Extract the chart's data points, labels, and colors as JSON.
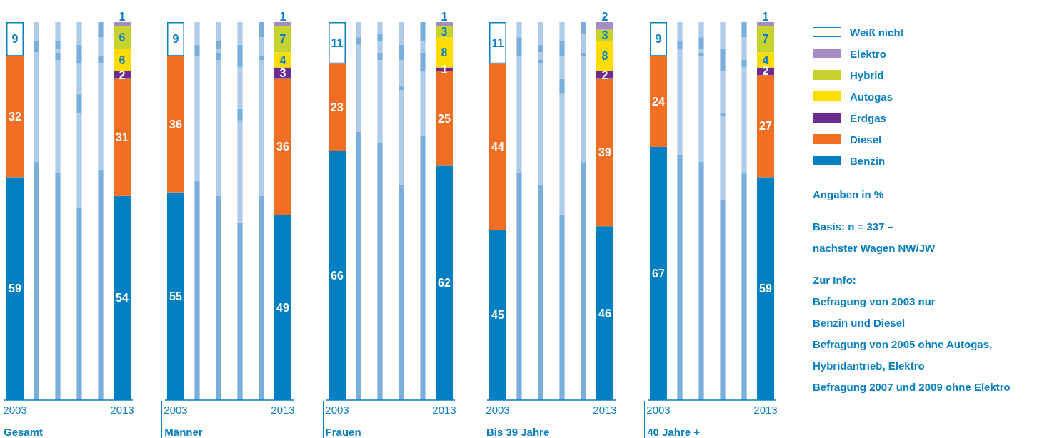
{
  "chart_data": [
    {
      "type": "bar",
      "stacked": true,
      "xlabel": "Gesamt",
      "categories": [
        "2003",
        null,
        null,
        null,
        null,
        "2013"
      ],
      "legend": "right",
      "annotations": [
        "Angaben in %",
        "Basis: n = 337 –\nnächster Wagen NW/JW",
        "Zur Info:\nBefragung von 2003 nur\nBenzin und Diesel\nBefragung von 2005 ohne Autogas,\nHybridantrieb, Elektro\nBefragung 2007 und 2009 ohne Elektro"
      ],
      "series": [
        {
          "name": "Benzin",
          "color": "#0080c3",
          "colors": [
            "#0080c3",
            "#7aafdb",
            "#7aafdb",
            "#7aafdb",
            "#7aafdb",
            "#0080c3"
          ],
          "values": [
            59,
            63,
            60,
            51,
            61,
            54
          ],
          "value_labels": [
            "59",
            null,
            null,
            null,
            null,
            "54"
          ]
        },
        {
          "name": "Diesel",
          "color": "#f26e22",
          "colors": [
            "#f26e22",
            "#aecbe9",
            "#aecbe9",
            "#aecbe9",
            "#aecbe9",
            "#f26e22"
          ],
          "values": [
            32,
            29,
            30,
            25,
            28,
            31
          ],
          "value_labels": [
            "32",
            null,
            null,
            null,
            null,
            "31"
          ]
        },
        {
          "name": "Erdgas",
          "color": "#6a2c91",
          "colors": [
            "#6a2c91",
            "#7aafdb",
            "#7aafdb",
            "#7aafdb",
            "#7aafdb",
            "#6a2c91"
          ],
          "values": [
            null,
            3,
            2,
            5,
            2,
            2
          ],
          "value_labels": [
            null,
            null,
            null,
            null,
            null,
            "2"
          ]
        },
        {
          "name": "Autogas",
          "color": "#ffdd00",
          "colors": [
            "#ffdd00",
            "#aecbe9",
            "#aecbe9",
            "#aecbe9",
            "#aecbe9",
            "#ffdd00"
          ],
          "values": [
            null,
            null,
            1,
            8,
            5,
            6
          ],
          "value_labels": [
            null,
            null,
            null,
            null,
            null,
            "6"
          ]
        },
        {
          "name": "Hybrid",
          "color": "#c8d22f",
          "colors": [
            "#c8d22f",
            "#7aafdb",
            "#7aafdb",
            "#7aafdb",
            "#7aafdb",
            "#c8d22f"
          ],
          "values": [
            null,
            null,
            2,
            5,
            4,
            6
          ],
          "value_labels": [
            null,
            null,
            null,
            null,
            null,
            "6"
          ]
        },
        {
          "name": "Elektro",
          "color": "#a58cc4",
          "colors": [
            "#a58cc4",
            "#aecbe9",
            "#aecbe9",
            "#aecbe9",
            "#aecbe9",
            "#a58cc4"
          ],
          "values": [
            null,
            null,
            null,
            null,
            null,
            1
          ],
          "value_labels": [
            null,
            null,
            null,
            null,
            null,
            "1"
          ]
        },
        {
          "name": "Weiß nicht",
          "color": "#ffffff",
          "colors": [
            "#ffffff",
            "#aecbe9",
            "#aecbe9",
            "#aecbe9",
            "#aecbe9",
            "#ffffff"
          ],
          "values": [
            9,
            5,
            5,
            6,
            null,
            null
          ],
          "value_labels": [
            "9",
            null,
            null,
            null,
            null,
            null
          ]
        }
      ]
    },
    {
      "type": "bar",
      "stacked": true,
      "xlabel": "Männer",
      "categories": [
        "2003",
        null,
        null,
        null,
        null,
        "2013"
      ],
      "series": [
        {
          "color": "#0080c3",
          "colors": [
            "#0080c3",
            "#7aafdb",
            "#7aafdb",
            "#7aafdb",
            "#7aafdb",
            "#0080c3"
          ],
          "values": [
            55,
            58,
            54,
            47,
            54,
            49
          ],
          "value_labels": [
            "55",
            null,
            null,
            null,
            null,
            "49"
          ]
        },
        {
          "color": "#f26e22",
          "colors": [
            "#f26e22",
            "#aecbe9",
            "#aecbe9",
            "#aecbe9",
            "#aecbe9",
            "#f26e22"
          ],
          "values": [
            36,
            33,
            36,
            27,
            36,
            36
          ],
          "value_labels": [
            "36",
            null,
            null,
            null,
            null,
            "36"
          ]
        },
        {
          "color": "#6a2c91",
          "colors": [
            "#6a2c91",
            "#7aafdb",
            "#7aafdb",
            "#7aafdb",
            "#7aafdb",
            "#6a2c91"
          ],
          "values": [
            null,
            3,
            2,
            3,
            1,
            3
          ],
          "value_labels": [
            null,
            null,
            null,
            null,
            null,
            "3"
          ]
        },
        {
          "color": "#ffdd00",
          "colors": [
            "#ffdd00",
            "#aecbe9",
            "#aecbe9",
            "#aecbe9",
            "#aecbe9",
            "#ffdd00"
          ],
          "values": [
            null,
            null,
            1,
            11,
            5,
            4
          ],
          "value_labels": [
            null,
            null,
            null,
            null,
            null,
            "4"
          ]
        },
        {
          "color": "#c8d22f",
          "colors": [
            "#c8d22f",
            "#7aafdb",
            "#7aafdb",
            "#7aafdb",
            "#7aafdb",
            "#c8d22f"
          ],
          "values": [
            null,
            null,
            2,
            6,
            4,
            7
          ],
          "value_labels": [
            null,
            null,
            null,
            null,
            null,
            "7"
          ]
        },
        {
          "color": "#a58cc4",
          "colors": [
            "#a58cc4",
            "#aecbe9",
            "#aecbe9",
            "#aecbe9",
            "#aecbe9",
            "#a58cc4"
          ],
          "values": [
            null,
            null,
            null,
            null,
            null,
            1
          ],
          "value_labels": [
            null,
            null,
            null,
            null,
            null,
            "1"
          ]
        },
        {
          "color": "#ffffff",
          "colors": [
            "#ffffff",
            "#aecbe9",
            "#aecbe9",
            "#aecbe9",
            "#aecbe9",
            "#ffffff"
          ],
          "values": [
            9,
            6,
            5,
            6,
            null,
            null
          ],
          "value_labels": [
            "9",
            null,
            null,
            null,
            null,
            null
          ]
        }
      ]
    },
    {
      "type": "bar",
      "stacked": true,
      "xlabel": "Frauen",
      "categories": [
        "2003",
        null,
        null,
        null,
        null,
        "2013"
      ],
      "series": [
        {
          "color": "#0080c3",
          "colors": [
            "#0080c3",
            "#7aafdb",
            "#7aafdb",
            "#7aafdb",
            "#7aafdb",
            "#0080c3"
          ],
          "values": [
            66,
            71,
            68,
            57,
            70,
            62
          ],
          "value_labels": [
            "66",
            null,
            null,
            null,
            null,
            "62"
          ]
        },
        {
          "color": "#f26e22",
          "colors": [
            "#f26e22",
            "#aecbe9",
            "#aecbe9",
            "#aecbe9",
            "#aecbe9",
            "#f26e22"
          ],
          "values": [
            23,
            23,
            22,
            25,
            17,
            25
          ],
          "value_labels": [
            "23",
            null,
            null,
            null,
            null,
            "25"
          ]
        },
        {
          "color": "#6a2c91",
          "colors": [
            "#6a2c91",
            "#7aafdb",
            "#7aafdb",
            "#7aafdb",
            "#7aafdb",
            "#6a2c91"
          ],
          "values": [
            null,
            2,
            2,
            1,
            5,
            1
          ],
          "value_labels": [
            null,
            null,
            null,
            null,
            null,
            "1"
          ]
        },
        {
          "color": "#ffdd00",
          "colors": [
            "#ffdd00",
            "#aecbe9",
            "#aecbe9",
            "#aecbe9",
            "#aecbe9",
            "#ffdd00"
          ],
          "values": [
            null,
            null,
            3,
            7,
            3,
            8
          ],
          "value_labels": [
            null,
            null,
            null,
            null,
            null,
            "8"
          ]
        },
        {
          "color": "#c8d22f",
          "colors": [
            "#c8d22f",
            "#7aafdb",
            "#7aafdb",
            "#7aafdb",
            "#7aafdb",
            "#c8d22f"
          ],
          "values": [
            null,
            null,
            2,
            4,
            5,
            3
          ],
          "value_labels": [
            null,
            null,
            null,
            null,
            null,
            "3"
          ]
        },
        {
          "color": "#a58cc4",
          "colors": [
            "#a58cc4",
            "#aecbe9",
            "#aecbe9",
            "#aecbe9",
            "#aecbe9",
            "#a58cc4"
          ],
          "values": [
            null,
            null,
            null,
            null,
            null,
            1
          ],
          "value_labels": [
            null,
            null,
            null,
            null,
            null,
            "1"
          ]
        },
        {
          "color": "#ffffff",
          "colors": [
            "#ffffff",
            "#aecbe9",
            "#aecbe9",
            "#aecbe9",
            "#aecbe9",
            "#ffffff"
          ],
          "values": [
            11,
            4,
            3,
            6,
            null,
            null
          ],
          "value_labels": [
            "11",
            null,
            null,
            null,
            null,
            null
          ]
        }
      ]
    },
    {
      "type": "bar",
      "stacked": true,
      "xlabel": "Bis 39 Jahre",
      "categories": [
        "2003",
        null,
        null,
        null,
        null,
        "2013"
      ],
      "series": [
        {
          "color": "#0080c3",
          "colors": [
            "#0080c3",
            "#7aafdb",
            "#7aafdb",
            "#7aafdb",
            "#7aafdb",
            "#0080c3"
          ],
          "values": [
            45,
            60,
            57,
            49,
            63,
            46
          ],
          "value_labels": [
            "45",
            null,
            null,
            null,
            null,
            "46"
          ]
        },
        {
          "color": "#f26e22",
          "colors": [
            "#f26e22",
            "#aecbe9",
            "#aecbe9",
            "#aecbe9",
            "#aecbe9",
            "#f26e22"
          ],
          "values": [
            44,
            31,
            32,
            32,
            28,
            39
          ],
          "value_labels": [
            "44",
            null,
            null,
            null,
            null,
            "39"
          ]
        },
        {
          "color": "#6a2c91",
          "colors": [
            "#6a2c91",
            "#7aafdb",
            "#7aafdb",
            "#7aafdb",
            "#7aafdb",
            "#6a2c91"
          ],
          "values": [
            null,
            5,
            1,
            4,
            1,
            2
          ],
          "value_labels": [
            null,
            null,
            null,
            null,
            null,
            "2"
          ]
        },
        {
          "color": "#ffdd00",
          "colors": [
            "#ffdd00",
            "#aecbe9",
            "#aecbe9",
            "#aecbe9",
            "#aecbe9",
            "#ffdd00"
          ],
          "values": [
            null,
            null,
            2,
            6,
            5,
            8
          ],
          "value_labels": [
            null,
            null,
            null,
            null,
            null,
            "8"
          ]
        },
        {
          "color": "#c8d22f",
          "colors": [
            "#c8d22f",
            "#7aafdb",
            "#7aafdb",
            "#7aafdb",
            "#7aafdb",
            "#c8d22f"
          ],
          "values": [
            null,
            null,
            2,
            4,
            3,
            3
          ],
          "value_labels": [
            null,
            null,
            null,
            null,
            null,
            "3"
          ]
        },
        {
          "color": "#a58cc4",
          "colors": [
            "#a58cc4",
            "#aecbe9",
            "#aecbe9",
            "#aecbe9",
            "#aecbe9",
            "#a58cc4"
          ],
          "values": [
            null,
            null,
            null,
            null,
            null,
            2
          ],
          "value_labels": [
            null,
            null,
            null,
            null,
            null,
            "2"
          ]
        },
        {
          "color": "#ffffff",
          "colors": [
            "#ffffff",
            "#aecbe9",
            "#aecbe9",
            "#aecbe9",
            "#aecbe9",
            "#ffffff"
          ],
          "values": [
            11,
            4,
            6,
            5,
            null,
            null
          ],
          "value_labels": [
            "11",
            null,
            null,
            null,
            null,
            null
          ]
        }
      ]
    },
    {
      "type": "bar",
      "stacked": true,
      "xlabel": "40 Jahre +",
      "categories": [
        "2003",
        null,
        null,
        null,
        null,
        "2013"
      ],
      "series": [
        {
          "color": "#0080c3",
          "colors": [
            "#0080c3",
            "#7aafdb",
            "#7aafdb",
            "#7aafdb",
            "#7aafdb",
            "#0080c3"
          ],
          "values": [
            67,
            65,
            63,
            53,
            60,
            59
          ],
          "value_labels": [
            "67",
            null,
            null,
            null,
            null,
            "59"
          ]
        },
        {
          "color": "#f26e22",
          "colors": [
            "#f26e22",
            "#aecbe9",
            "#aecbe9",
            "#aecbe9",
            "#aecbe9",
            "#f26e22"
          ],
          "values": [
            24,
            28,
            28,
            22,
            28,
            27
          ],
          "value_labels": [
            "24",
            null,
            null,
            null,
            null,
            "27"
          ]
        },
        {
          "color": "#6a2c91",
          "colors": [
            "#6a2c91",
            "#7aafdb",
            "#7aafdb",
            "#7aafdb",
            "#7aafdb",
            "#6a2c91"
          ],
          "values": [
            null,
            2,
            1,
            1,
            2,
            2
          ],
          "value_labels": [
            null,
            null,
            null,
            null,
            null,
            "2"
          ]
        },
        {
          "color": "#ffdd00",
          "colors": [
            "#ffdd00",
            "#aecbe9",
            "#aecbe9",
            "#aecbe9",
            "#aecbe9",
            "#ffdd00"
          ],
          "values": [
            null,
            null,
            1,
            11,
            6,
            4
          ],
          "value_labels": [
            null,
            null,
            null,
            null,
            null,
            "4"
          ]
        },
        {
          "color": "#c8d22f",
          "colors": [
            "#c8d22f",
            "#7aafdb",
            "#7aafdb",
            "#7aafdb",
            "#7aafdb",
            "#c8d22f"
          ],
          "values": [
            null,
            null,
            3,
            6,
            4,
            7
          ],
          "value_labels": [
            null,
            null,
            null,
            null,
            null,
            "7"
          ]
        },
        {
          "color": "#a58cc4",
          "colors": [
            "#a58cc4",
            "#aecbe9",
            "#aecbe9",
            "#aecbe9",
            "#aecbe9",
            "#a58cc4"
          ],
          "values": [
            null,
            null,
            null,
            null,
            null,
            1
          ],
          "value_labels": [
            null,
            null,
            null,
            null,
            null,
            "1"
          ]
        },
        {
          "color": "#ffffff",
          "colors": [
            "#ffffff",
            "#aecbe9",
            "#aecbe9",
            "#aecbe9",
            "#aecbe9",
            "#ffffff"
          ],
          "values": [
            9,
            5,
            4,
            7,
            null,
            null
          ],
          "value_labels": [
            "9",
            null,
            null,
            null,
            null,
            null
          ]
        }
      ]
    }
  ]
}
